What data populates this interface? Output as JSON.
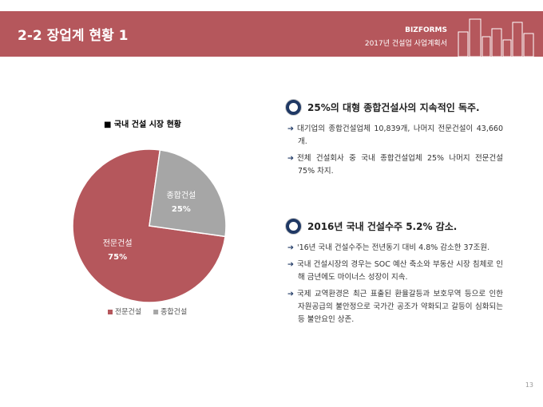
{
  "header": {
    "title": "2-2 장업계 현황 1",
    "brand": "BIZFORMS",
    "subtitle": "2017년 건설업 사업계획서"
  },
  "chart_data": {
    "type": "pie",
    "title": "■ 국내 건설 시장 현황",
    "categories": [
      "전문건설",
      "종합건설"
    ],
    "values": [
      75,
      25
    ],
    "value_labels": [
      "75%",
      "25%"
    ],
    "colors": [
      "#b5575c",
      "#a6a6a6"
    ]
  },
  "sections": [
    {
      "heading": "25%의 대형 종합건설사의 지속적인 독주.",
      "bullets": [
        "대기업의 종합건설업체 10,839개, 나머지 전문건설이 43,660개.",
        "전체 건설회사 중 국내 종합건설업체 25% 나머지 전문건설 75% 차지."
      ]
    },
    {
      "heading": "2016년 국내 건설수주 5.2% 감소.",
      "bullets": [
        "'16년 국내 건설수주는 전년동기 대비 4.8% 감소한 37조원.",
        "국내 건설시장의 경우는 SOC 예산 축소와 부동산 시장 침체로 인해 금년에도 마이너스 성장이 지속.",
        "국제 교역환경은 최근 표출된 환율갈등과 보호무역 등으로 인한 자원공급의 불안정으로 국가간 공조가 약화되고 갈등이 심화되는 등 불안요인 상존."
      ]
    }
  ],
  "page_number": "13"
}
